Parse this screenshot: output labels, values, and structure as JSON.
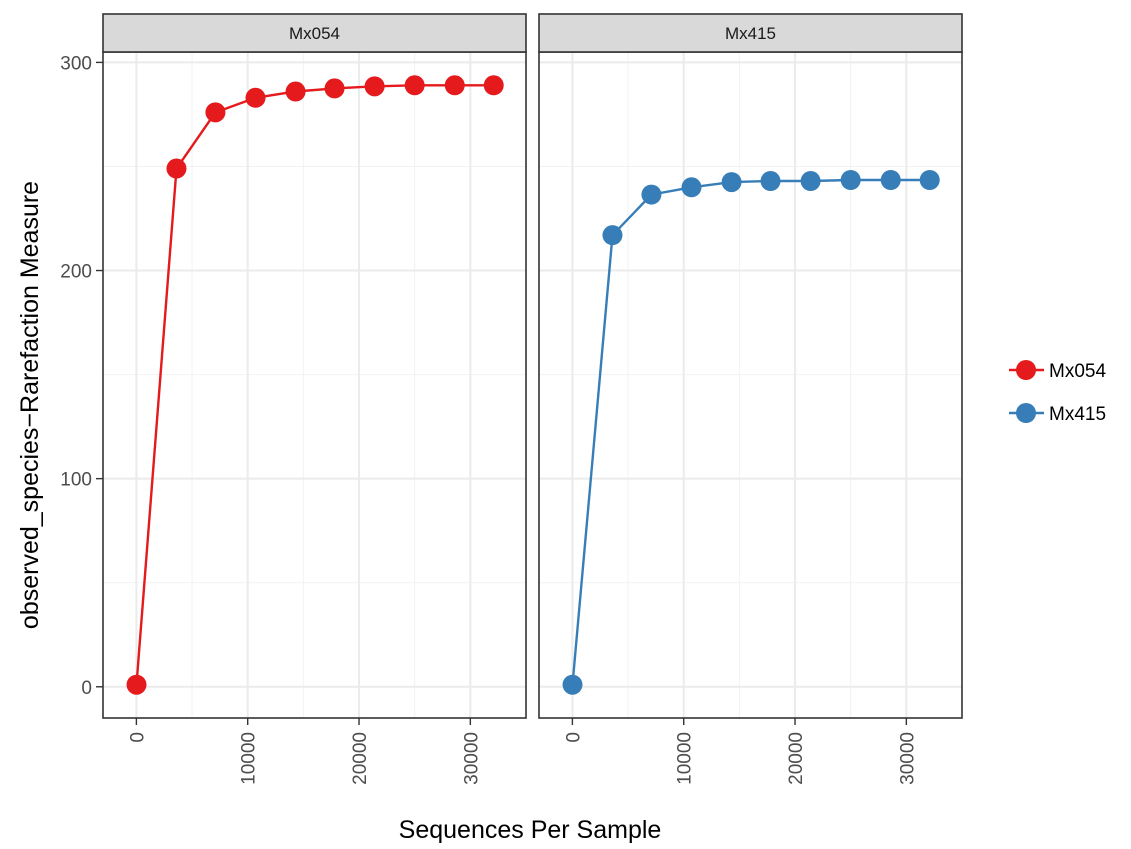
{
  "chart_data": {
    "type": "line",
    "faceted": true,
    "xlabel": "Sequences Per Sample",
    "ylabel": "observed_species−Rarefaction Measure",
    "xlim": [
      -3000,
      35000
    ],
    "ylim": [
      -15,
      305
    ],
    "x_ticks": [
      0,
      10000,
      20000,
      30000
    ],
    "x_tick_labels": [
      "0",
      "10000",
      "20000",
      "30000"
    ],
    "y_ticks": [
      0,
      100,
      200,
      300
    ],
    "y_tick_labels": [
      "0",
      "100",
      "200",
      "300"
    ],
    "grid": true,
    "legend_position": "right",
    "panels": [
      {
        "strip_label": "Mx054",
        "series": [
          {
            "name": "Mx054",
            "color": "#E41A1C",
            "x": [
              10,
              3600,
              7100,
              10700,
              14300,
              17800,
              21400,
              25000,
              28600,
              32100
            ],
            "y": [
              1,
              249,
              276,
              283,
              286,
              287.5,
              288.5,
              289,
              289,
              289
            ]
          }
        ]
      },
      {
        "strip_label": "Mx415",
        "series": [
          {
            "name": "Mx415",
            "color": "#377EB8",
            "x": [
              10,
              3600,
              7100,
              10700,
              14300,
              17800,
              21400,
              25000,
              28600,
              32100
            ],
            "y": [
              1,
              217,
              236.5,
              240,
              242.5,
              243,
              243,
              243.5,
              243.5,
              243.5
            ]
          }
        ]
      }
    ],
    "legend": [
      {
        "label": "Mx054",
        "color": "#E41A1C"
      },
      {
        "label": "Mx415",
        "color": "#377EB8"
      }
    ]
  }
}
